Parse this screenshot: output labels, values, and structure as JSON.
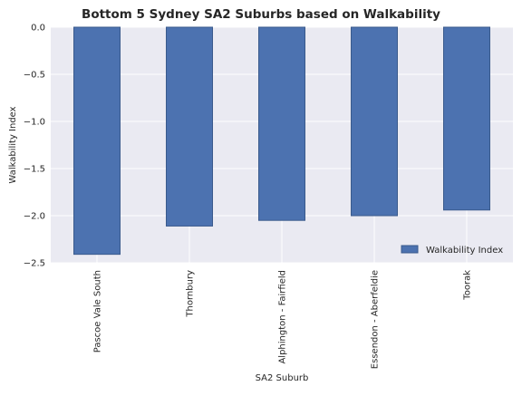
{
  "chart_data": {
    "type": "bar",
    "title": "Bottom 5 Sydney SA2 Suburbs based on Walkability",
    "xlabel": "SA2 Suburb",
    "ylabel": "Walkability Index",
    "categories": [
      "Pascoe Vale South",
      "Thornbury",
      "Alphington - Fairfield",
      "Essendon - Aberfeldie",
      "Toorak"
    ],
    "series": [
      {
        "name": "Walkability Index",
        "values": [
          -2.41,
          -2.11,
          -2.05,
          -2.0,
          -1.94
        ]
      }
    ],
    "ylim": [
      -2.5,
      0.0
    ],
    "yticks": [
      0.0,
      -0.5,
      -1.0,
      -1.5,
      -2.0,
      -2.5
    ],
    "ytick_labels": [
      "0.0",
      "−0.5",
      "−1.0",
      "−1.5",
      "−2.0",
      "−2.5"
    ],
    "grid": true,
    "legend_position": "lower-right",
    "colors": {
      "bar_fill": "#4c72b0",
      "bar_edge": "#3a5a8c",
      "plot_background": "#eaeaf2",
      "grid": "#ffffff"
    }
  }
}
